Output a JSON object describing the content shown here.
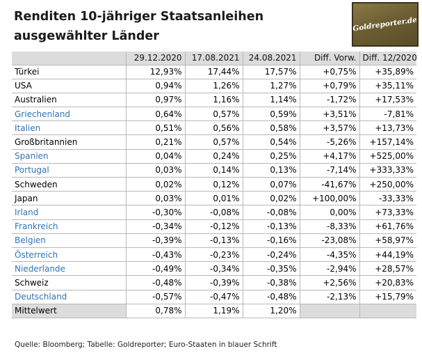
{
  "title": {
    "line1": "Renditen 10-jähriger Staatsanleihen",
    "line2": "ausgewählter Länder"
  },
  "logo": {
    "text": "Goldreporter.de"
  },
  "table": {
    "headers": [
      "",
      "29.12.2020",
      "17.08.2021",
      "24.08.2021",
      "Diff. Vorw.",
      "Diff. 12/2020"
    ],
    "rows": [
      {
        "country": "Türkei",
        "euro": false,
        "v1": "12,93%",
        "v2": "17,44%",
        "v3": "17,57%",
        "d1": "+0,75%",
        "d2": "+35,89%"
      },
      {
        "country": "USA",
        "euro": false,
        "v1": "0,94%",
        "v2": "1,26%",
        "v3": "1,27%",
        "d1": "+0,79%",
        "d2": "+35,11%"
      },
      {
        "country": "Australien",
        "euro": false,
        "v1": "0,97%",
        "v2": "1,16%",
        "v3": "1,14%",
        "d1": "-1,72%",
        "d2": "+17,53%"
      },
      {
        "country": "Griechenland",
        "euro": true,
        "v1": "0,64%",
        "v2": "0,57%",
        "v3": "0,59%",
        "d1": "+3,51%",
        "d2": "-7,81%"
      },
      {
        "country": "Italien",
        "euro": true,
        "v1": "0,51%",
        "v2": "0,56%",
        "v3": "0,58%",
        "d1": "+3,57%",
        "d2": "+13,73%"
      },
      {
        "country": "Großbritannien",
        "euro": false,
        "v1": "0,21%",
        "v2": "0,57%",
        "v3": "0,54%",
        "d1": "-5,26%",
        "d2": "+157,14%"
      },
      {
        "country": "Spanien",
        "euro": true,
        "v1": "0,04%",
        "v2": "0,24%",
        "v3": "0,25%",
        "d1": "+4,17%",
        "d2": "+525,00%"
      },
      {
        "country": "Portugal",
        "euro": true,
        "v1": "0,03%",
        "v2": "0,14%",
        "v3": "0,13%",
        "d1": "-7,14%",
        "d2": "+333,33%"
      },
      {
        "country": "Schweden",
        "euro": false,
        "v1": "0,02%",
        "v2": "0,12%",
        "v3": "0,07%",
        "d1": "-41,67%",
        "d2": "+250,00%"
      },
      {
        "country": "Japan",
        "euro": false,
        "v1": "0,03%",
        "v2": "0,01%",
        "v3": "0,02%",
        "d1": "+100,00%",
        "d2": "-33,33%"
      },
      {
        "country": "Irland",
        "euro": true,
        "v1": "-0,30%",
        "v2": "-0,08%",
        "v3": "-0,08%",
        "d1": "0,00%",
        "d2": "+73,33%"
      },
      {
        "country": "Frankreich",
        "euro": true,
        "v1": "-0,34%",
        "v2": "-0,12%",
        "v3": "-0,13%",
        "d1": "-8,33%",
        "d2": "+61,76%"
      },
      {
        "country": "Belgien",
        "euro": true,
        "v1": "-0,39%",
        "v2": "-0,13%",
        "v3": "-0,16%",
        "d1": "-23,08%",
        "d2": "+58,97%"
      },
      {
        "country": "Österreich",
        "euro": true,
        "v1": "-0,43%",
        "v2": "-0,23%",
        "v3": "-0,24%",
        "d1": "-4,35%",
        "d2": "+44,19%"
      },
      {
        "country": "Niederlande",
        "euro": true,
        "v1": "-0,49%",
        "v2": "-0,34%",
        "v3": "-0,35%",
        "d1": "-2,94%",
        "d2": "+28,57%"
      },
      {
        "country": "Schweiz",
        "euro": false,
        "v1": "-0,48%",
        "v2": "-0,39%",
        "v3": "-0,38%",
        "d1": "+2,56%",
        "d2": "+20,83%"
      },
      {
        "country": "Deutschland",
        "euro": true,
        "v1": "-0,57%",
        "v2": "-0,47%",
        "v3": "-0,48%",
        "d1": "-2,13%",
        "d2": "+15,79%"
      }
    ],
    "mean": {
      "label": "Mittelwert",
      "v1": "0,78%",
      "v2": "1,19%",
      "v3": "1,20%"
    }
  },
  "source": "Quelle: Bloomberg; Tabelle: Goldreporter; Euro-Staaten in blauer Schrift",
  "colors": {
    "euro_text": "#2e75b6",
    "header_bg": "#dcdcdc",
    "logo_bg": "#6d5f33"
  }
}
